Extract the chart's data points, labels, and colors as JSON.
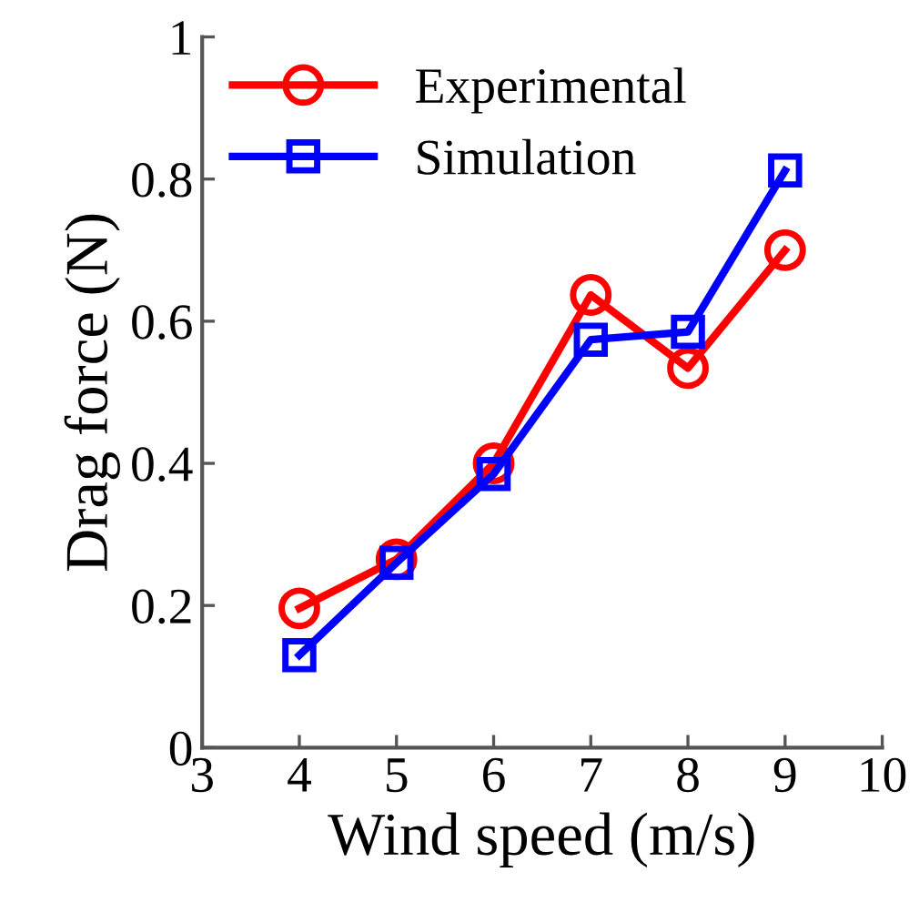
{
  "chart_data": {
    "type": "line",
    "xlabel": "Wind speed (m/s)",
    "ylabel": "Drag force (N)",
    "x": [
      4,
      5,
      6,
      7,
      8,
      9
    ],
    "series": [
      {
        "name": "Experimental",
        "color": "#ff0000",
        "marker": "circle",
        "values": [
          0.196,
          0.265,
          0.4,
          0.637,
          0.534,
          0.7
        ]
      },
      {
        "name": "Simulation",
        "color": "#0000ff",
        "marker": "square",
        "values": [
          0.13,
          0.26,
          0.385,
          0.574,
          0.585,
          0.812
        ]
      }
    ],
    "xlim": [
      3,
      10
    ],
    "xticks": [
      3,
      4,
      5,
      6,
      7,
      8,
      9,
      10
    ],
    "ylim": [
      0,
      1
    ],
    "yticks": [
      0,
      0.2,
      0.4,
      0.6,
      0.8,
      1
    ],
    "grid": false,
    "legend": "top left",
    "line_style": "solid"
  }
}
